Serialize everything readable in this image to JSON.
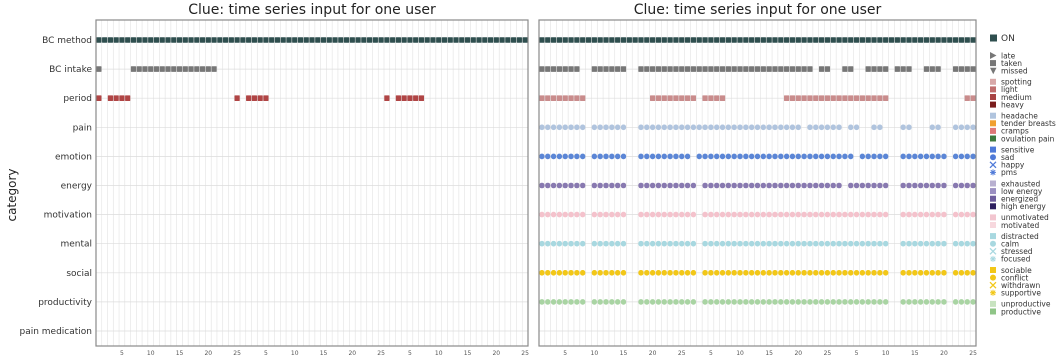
{
  "chart_data": [
    {
      "type": "scatter",
      "title": "Clue: time series input for one user",
      "ylabel": "category",
      "categories": [
        "BC method",
        "BC intake",
        "period",
        "pain",
        "emotion",
        "energy",
        "motivation",
        "mental",
        "social",
        "productivity",
        "pain medication"
      ],
      "xticks": [
        "5",
        "10",
        "15",
        "20",
        "25",
        "5",
        "10",
        "15",
        "20",
        "25",
        "5",
        "10",
        "15",
        "20",
        "25"
      ],
      "xlim": [
        1,
        75
      ],
      "grid": true,
      "series": [
        {
          "category": "BC method",
          "value": "ON",
          "color": "#2f4f4f",
          "ranges": [
            [
              1,
              75
            ]
          ]
        },
        {
          "category": "BC intake",
          "value": "taken",
          "color": "#777777",
          "x": [
            1,
            7,
            8,
            9,
            10,
            11,
            12,
            13,
            14,
            15,
            16,
            17,
            18,
            19,
            20,
            21
          ]
        },
        {
          "category": "period",
          "value": "medium",
          "color": "#b04545",
          "x": [
            1,
            3,
            4,
            5,
            6,
            25,
            27,
            28,
            29,
            30,
            51,
            53,
            54,
            55,
            56,
            57
          ]
        }
      ]
    },
    {
      "type": "scatter",
      "title": "Clue: time series input for one user",
      "categories": [
        "BC method",
        "BC intake",
        "period",
        "pain",
        "emotion",
        "energy",
        "motivation",
        "mental",
        "social",
        "productivity",
        "pain medication"
      ],
      "xticks": [
        "5",
        "10",
        "15",
        "20",
        "25",
        "5",
        "10",
        "15",
        "20",
        "25",
        "5",
        "10",
        "15",
        "20",
        "25"
      ],
      "xlim": [
        1,
        75
      ],
      "grid": true,
      "series": [
        {
          "category": "BC method",
          "color": "#2f4f4f",
          "ranges": [
            [
              1,
              75
            ]
          ]
        },
        {
          "category": "BC intake",
          "color": "#777777",
          "ranges": [
            [
              1,
              7
            ],
            [
              10,
              15
            ],
            [
              18,
              32
            ],
            [
              33,
              41
            ],
            [
              42,
              47
            ],
            [
              49,
              50
            ],
            [
              53,
              54
            ],
            [
              57,
              60
            ],
            [
              62,
              64
            ],
            [
              67,
              69
            ],
            [
              72,
              75
            ]
          ]
        },
        {
          "category": "period",
          "color": "#c98c8c",
          "ranges": [
            [
              1,
              8
            ],
            [
              20,
              27
            ],
            [
              29,
              32
            ],
            [
              43,
              60
            ],
            [
              74,
              75
            ]
          ]
        },
        {
          "category": "pain",
          "color": "#b0c4de",
          "ranges": [
            [
              1,
              8
            ],
            [
              10,
              15
            ],
            [
              18,
              45
            ],
            [
              47,
              52
            ],
            [
              54,
              55
            ],
            [
              58,
              59
            ],
            [
              63,
              64
            ],
            [
              68,
              69
            ],
            [
              72,
              75
            ]
          ]
        },
        {
          "category": "emotion",
          "color": "#5b86d6",
          "ranges": [
            [
              1,
              8
            ],
            [
              10,
              15
            ],
            [
              18,
              26
            ],
            [
              28,
              45
            ],
            [
              46,
              54
            ],
            [
              56,
              60
            ],
            [
              63,
              70
            ],
            [
              72,
              75
            ]
          ]
        },
        {
          "category": "energy",
          "color": "#8879b0",
          "ranges": [
            [
              1,
              8
            ],
            [
              10,
              15
            ],
            [
              18,
              27
            ],
            [
              29,
              45
            ],
            [
              46,
              52
            ],
            [
              54,
              60
            ],
            [
              63,
              70
            ],
            [
              72,
              75
            ]
          ]
        },
        {
          "category": "motivation",
          "color": "#f4c2cc",
          "ranges": [
            [
              1,
              8
            ],
            [
              10,
              15
            ],
            [
              18,
              27
            ],
            [
              29,
              60
            ],
            [
              63,
              70
            ],
            [
              72,
              75
            ]
          ]
        },
        {
          "category": "mental",
          "color": "#a8d8e0",
          "ranges": [
            [
              1,
              8
            ],
            [
              10,
              15
            ],
            [
              18,
              27
            ],
            [
              29,
              60
            ],
            [
              63,
              70
            ],
            [
              72,
              75
            ]
          ]
        },
        {
          "category": "social",
          "color": "#f2c718",
          "ranges": [
            [
              1,
              8
            ],
            [
              10,
              15
            ],
            [
              18,
              27
            ],
            [
              29,
              60
            ],
            [
              63,
              70
            ],
            [
              72,
              75
            ]
          ]
        },
        {
          "category": "productivity",
          "color": "#a9d4a3",
          "ranges": [
            [
              1,
              8
            ],
            [
              10,
              15
            ],
            [
              18,
              27
            ],
            [
              29,
              60
            ],
            [
              63,
              70
            ],
            [
              72,
              75
            ]
          ]
        }
      ]
    }
  ],
  "legend": [
    {
      "label": "ON",
      "color": "#2f4f4f",
      "shape": "square",
      "big": true
    },
    {
      "gap": true
    },
    {
      "label": "late",
      "color": "#777777",
      "shape": "tri-right"
    },
    {
      "label": "taken",
      "color": "#777777",
      "shape": "square"
    },
    {
      "label": "missed",
      "color": "#777777",
      "shape": "tri-down"
    },
    {
      "gap": true
    },
    {
      "label": "spotting",
      "color": "#d8a8a8",
      "shape": "square"
    },
    {
      "label": "light",
      "color": "#c06d6d",
      "shape": "square"
    },
    {
      "label": "medium",
      "color": "#a84343",
      "shape": "square"
    },
    {
      "label": "heavy",
      "color": "#7a1d1d",
      "shape": "square"
    },
    {
      "gap": true
    },
    {
      "label": "headache",
      "color": "#b0c4de",
      "shape": "square"
    },
    {
      "label": "tender breasts",
      "color": "#f0a030",
      "shape": "square"
    },
    {
      "label": "cramps",
      "color": "#e07878",
      "shape": "square"
    },
    {
      "label": "ovulation pain",
      "color": "#3f7a3f",
      "shape": "square"
    },
    {
      "gap": true
    },
    {
      "label": "sensitive",
      "color": "#4f7ad8",
      "shape": "square"
    },
    {
      "label": "sad",
      "color": "#4f7ad8",
      "shape": "circle"
    },
    {
      "label": "happy",
      "color": "#4f7ad8",
      "shape": "cross"
    },
    {
      "label": "pms",
      "color": "#4f7ad8",
      "shape": "star"
    },
    {
      "gap": true
    },
    {
      "label": "exhausted",
      "color": "#b8b0d0",
      "shape": "square"
    },
    {
      "label": "low energy",
      "color": "#9b8fc2",
      "shape": "square"
    },
    {
      "label": "energized",
      "color": "#6f5e9e",
      "shape": "square"
    },
    {
      "label": "high energy",
      "color": "#2e2060",
      "shape": "square"
    },
    {
      "gap": true
    },
    {
      "label": "unmotivated",
      "color": "#f2c5cf",
      "shape": "square"
    },
    {
      "label": "motivated",
      "color": "#f7d8de",
      "shape": "square"
    },
    {
      "gap": true
    },
    {
      "label": "distracted",
      "color": "#a8d8e0",
      "shape": "square"
    },
    {
      "label": "calm",
      "color": "#a8d8e0",
      "shape": "circle"
    },
    {
      "label": "stressed",
      "color": "#a8d8e0",
      "shape": "cross"
    },
    {
      "label": "focused",
      "color": "#a8d8e0",
      "shape": "star"
    },
    {
      "gap": true
    },
    {
      "label": "sociable",
      "color": "#f2c718",
      "shape": "square"
    },
    {
      "label": "conflict",
      "color": "#f2c718",
      "shape": "circle"
    },
    {
      "label": "withdrawn",
      "color": "#f2c718",
      "shape": "cross"
    },
    {
      "label": "supportive",
      "color": "#f2c718",
      "shape": "star"
    },
    {
      "gap": true
    },
    {
      "label": "unproductive",
      "color": "#c8e3c0",
      "shape": "square"
    },
    {
      "label": "productive",
      "color": "#8fc587",
      "shape": "square"
    }
  ]
}
